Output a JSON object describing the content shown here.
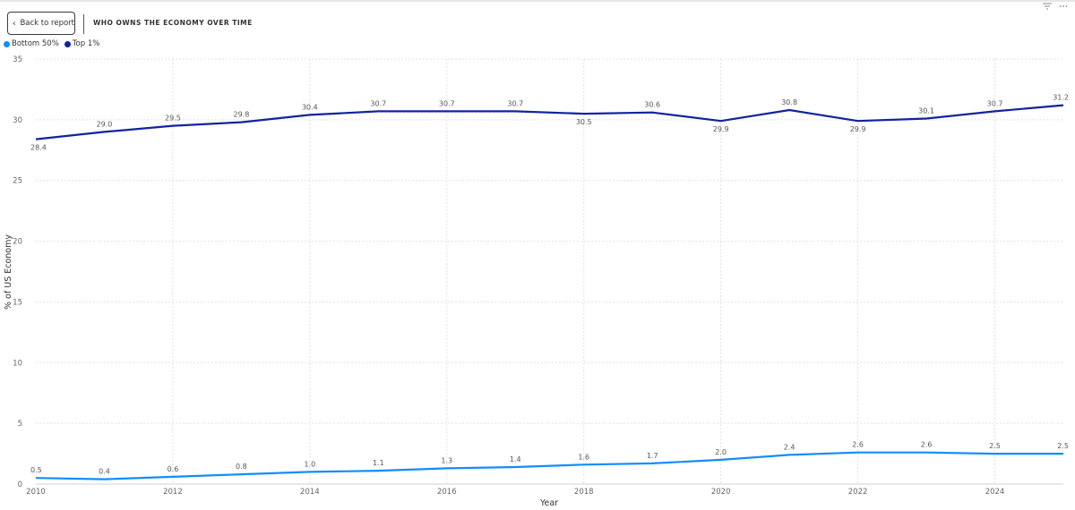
{
  "header": {
    "back_label": "Back to report",
    "title": "WHO OWNS THE ECONOMY OVER TIME"
  },
  "visual_header": {
    "icons": [
      "filter-icon",
      "more-options-icon"
    ]
  },
  "colors": {
    "bottom50": "#118DFF",
    "top1": "#12239E",
    "grid": "#e1e1e1"
  },
  "chart_data": {
    "type": "line",
    "xlabel": "Year",
    "ylabel": "% of US Economy",
    "x": [
      2010,
      2011,
      2012,
      2013,
      2014,
      2015,
      2016,
      2017,
      2018,
      2019,
      2020,
      2021,
      2022,
      2023,
      2024,
      2025
    ],
    "xticks": [
      "2010",
      "2012",
      "2014",
      "2016",
      "2018",
      "2020",
      "2022",
      "2024"
    ],
    "ylim": [
      0,
      35
    ],
    "yticks": [
      0,
      5,
      10,
      15,
      20,
      25,
      30,
      35
    ],
    "grid": true,
    "legend_position": "top-left",
    "series": [
      {
        "name": "Bottom 50%",
        "color": "#118DFF",
        "values": [
          0.5,
          0.4,
          0.6,
          0.8,
          1.0,
          1.1,
          1.3,
          1.4,
          1.6,
          1.7,
          2.0,
          2.4,
          2.6,
          2.6,
          2.5,
          2.5
        ],
        "labels": [
          "0.5",
          "0.4",
          "0.6",
          "0.8",
          "1.0",
          "1.1",
          "1.3",
          "1.4",
          "1.6",
          "1.7",
          "2.0",
          "2.4",
          "2.6",
          "2.6",
          "2.5",
          "2.5"
        ]
      },
      {
        "name": "Top 1%",
        "color": "#12239E",
        "values": [
          28.4,
          29.0,
          29.5,
          29.8,
          30.4,
          30.7,
          30.7,
          30.7,
          30.5,
          30.6,
          29.9,
          30.8,
          29.9,
          30.1,
          30.7,
          31.2
        ],
        "labels": [
          "28.4",
          "29.0",
          "29.5",
          "29.8",
          "30.4",
          "30.7",
          "30.7",
          "30.7",
          "30.5",
          "30.6",
          "29.9",
          "30.8",
          "29.9",
          "30.1",
          "30.7",
          "31.2"
        ]
      }
    ]
  }
}
